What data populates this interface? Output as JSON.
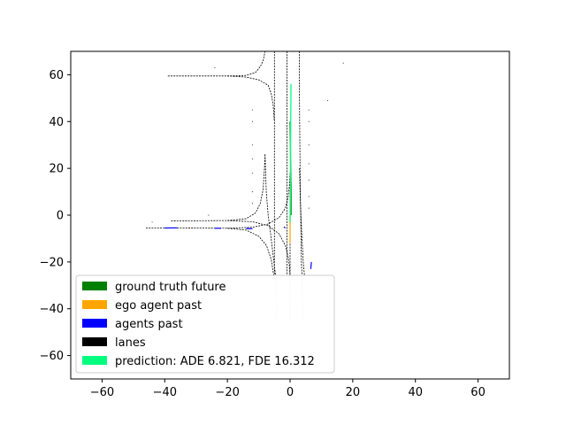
{
  "chart_data": {
    "type": "line",
    "title": "",
    "xlabel": "",
    "ylabel": "",
    "xlim": [
      -70,
      70
    ],
    "ylim": [
      -70,
      70
    ],
    "grid": false,
    "x_ticks": [
      -60,
      -40,
      -20,
      0,
      20,
      40,
      60
    ],
    "y_ticks": [
      -60,
      -40,
      -20,
      0,
      20,
      40,
      60
    ],
    "legend_position": "lower-left",
    "legend": [
      {
        "label": "ground truth future",
        "color": "#008000"
      },
      {
        "label": "ego agent past",
        "color": "#FFA500"
      },
      {
        "label": "agents past",
        "color": "#0000FF"
      },
      {
        "label": "lanes",
        "color": "#000000"
      },
      {
        "label": "prediction: ADE 6.821, FDE 16.312",
        "color": "#00FF7F"
      }
    ],
    "lanes": [
      {
        "x": [
          -39,
          -30,
          -20,
          -14,
          -11,
          -9.5,
          -8.6,
          -8.2,
          -8.0
        ],
        "y": [
          59.5,
          59.5,
          59.5,
          59.7,
          61,
          63.5,
          66,
          68.5,
          70
        ]
      },
      {
        "x": [
          -20,
          -14,
          -10,
          -7,
          -6,
          -5.4,
          -5.2,
          -5.0
        ],
        "y": [
          59.5,
          59.0,
          57.8,
          55.5,
          52,
          47,
          43,
          40
        ]
      },
      {
        "x": [
          -38,
          -30,
          -20,
          -14,
          -11,
          -9.5,
          -8.6,
          -8.2,
          -8.0
        ],
        "y": [
          -2.5,
          -2.4,
          -2.3,
          -1.5,
          1,
          5,
          11,
          19,
          26
        ]
      },
      {
        "x": [
          -20,
          -12,
          -7,
          -3.5,
          -1.5,
          -0.6,
          -0.2,
          0
        ],
        "y": [
          -2.3,
          -2.8,
          -4.5,
          -8,
          -13,
          -18,
          -22,
          -26
        ]
      },
      {
        "x": [
          -46,
          -35,
          -20,
          -14,
          -10,
          -7.5,
          -6.0,
          -5.2
        ],
        "y": [
          -5.5,
          -5.5,
          -5.6,
          -6.4,
          -9,
          -13,
          -19,
          -26
        ]
      },
      {
        "x": [
          -20,
          -12,
          -7,
          -3.5,
          -1.5,
          -0.6,
          -0.2,
          0
        ],
        "y": [
          -5.6,
          -5.2,
          -3.8,
          -1,
          3,
          8,
          13,
          18
        ]
      },
      {
        "x": [
          -5,
          -5,
          -5,
          -5,
          -5,
          -5
        ],
        "y": [
          70,
          50,
          20,
          0,
          -20,
          -26
        ]
      },
      {
        "x": [
          -1,
          -1,
          -1,
          -1,
          -1,
          -1
        ],
        "y": [
          70,
          50,
          20,
          0,
          -20,
          -26
        ]
      },
      {
        "x": [
          3,
          3,
          3.2,
          3.4,
          3.6,
          3.8
        ],
        "y": [
          70,
          50,
          20,
          0,
          -20,
          -26
        ]
      },
      {
        "x": [
          3,
          3.3,
          3.8,
          4.2,
          4.6
        ],
        "y": [
          20,
          5,
          -10,
          -20,
          -26
        ]
      },
      {
        "x": [
          -8,
          -7.6,
          -7.0,
          -6.2,
          -5.5,
          -5.0,
          -4.6
        ],
        "y": [
          26,
          10,
          0,
          -8,
          -16,
          -22,
          -26
        ]
      },
      {
        "x": [
          0,
          0,
          0,
          0
        ],
        "y": [
          18,
          0,
          -10,
          -26
        ]
      }
    ],
    "lane_extensions": [
      {
        "x": [
          -4.5,
          -4.3
        ],
        "y": [
          -26,
          -45
        ]
      },
      {
        "x": [
          0,
          0
        ],
        "y": [
          -26,
          -45
        ]
      },
      {
        "x": [
          3.8,
          4.0
        ],
        "y": [
          -26,
          -45
        ]
      }
    ],
    "ground_truth_future": {
      "x": [
        0.3,
        0.3,
        0.2,
        0.1,
        0.0
      ],
      "y": [
        0,
        10,
        20,
        30,
        40
      ]
    },
    "ego_agent_past": {
      "x": [
        0.0,
        0.0
      ],
      "y": [
        -12,
        0
      ]
    },
    "prediction": {
      "x": [
        0.0,
        0.1,
        0.1,
        0.2,
        0.3
      ],
      "y": [
        -3,
        10,
        25,
        40,
        56
      ]
    },
    "agents_past": [
      {
        "x": [
          -40,
          -36
        ],
        "y": [
          -5.5,
          -5.4
        ]
      },
      {
        "x": [
          -24,
          -22
        ],
        "y": [
          -5.6,
          -5.6
        ]
      },
      {
        "x": [
          -14,
          -12
        ],
        "y": [
          -5.7,
          -5.8
        ]
      },
      {
        "x": [
          -2,
          -1.5
        ],
        "y": [
          -5,
          -5.5
        ]
      },
      {
        "x": [
          6.8,
          6.6
        ],
        "y": [
          -20,
          -23
        ]
      }
    ],
    "scatter_dots": {
      "x": [
        -24,
        -12,
        -12,
        -12,
        -12,
        -12,
        -12,
        -12,
        6,
        6,
        6,
        6,
        6,
        6,
        6,
        12,
        17,
        -26,
        -44
      ],
      "y": [
        63,
        45,
        40,
        30,
        24,
        18,
        10,
        5,
        45,
        40,
        30,
        22,
        15,
        8,
        3,
        49,
        65,
        0,
        -3
      ]
    }
  }
}
